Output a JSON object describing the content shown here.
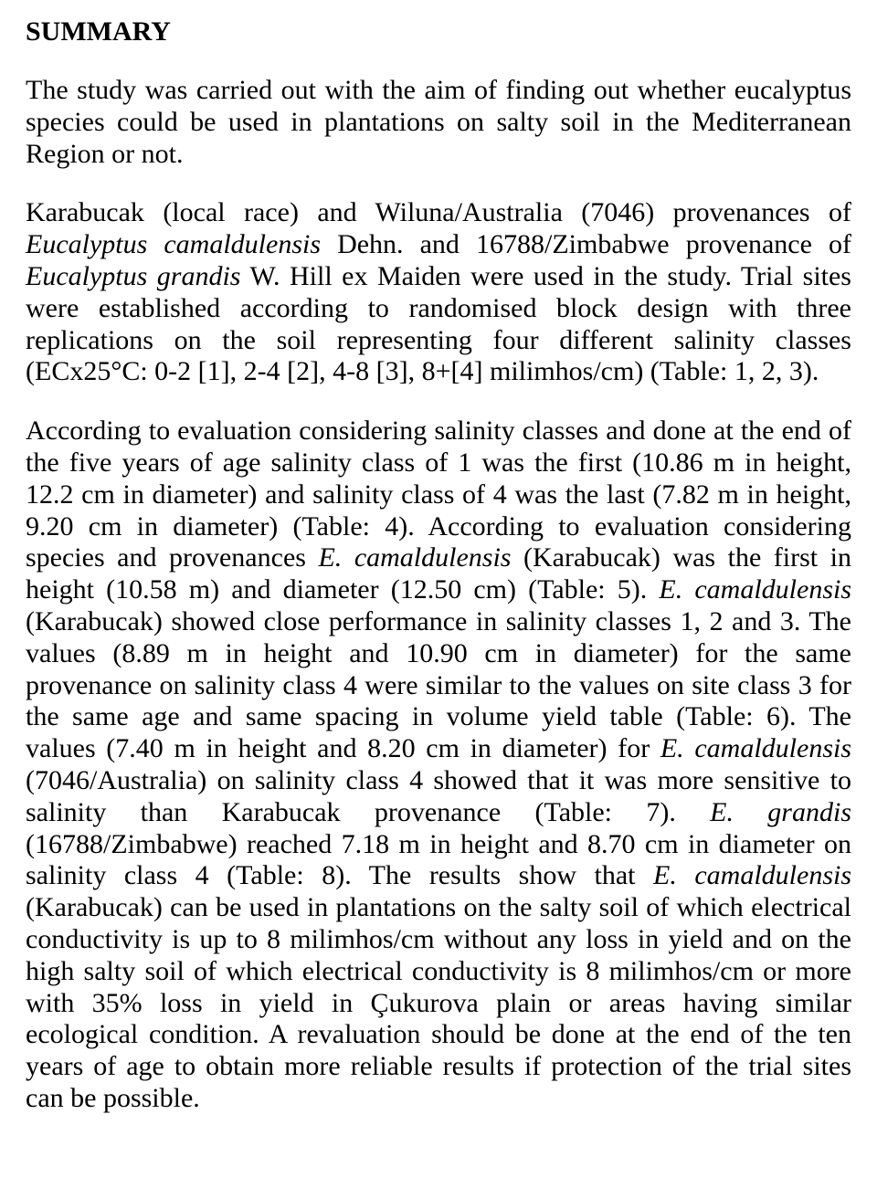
{
  "heading": "SUMMARY",
  "para1_part1": "The study was carried out with the aim of finding out whether eucalyptus species could be used  in plantations on salty soil in the Mediterranean Region or not.",
  "para2_part1": "Karabucak (local race) and Wiluna/Australia (7046) provenances of ",
  "para2_italic1": "Eucalyptus camaldulensis",
  "para2_part2": " Dehn. and 16788/Zimbabwe provenance of ",
  "para2_italic2": "Eucalyptus grandis",
  "para2_part3": " W. Hill ex Maiden were used in the study. Trial sites were established according to randomised block design with three replications on the soil representing four different salinity classes (ECx25°C: 0-2 [1], 2-4 [2], 4-8 [3], 8+[4] milimhos/cm) (Table: 1, 2, 3).",
  "para3_part1": "According to evaluation considering salinity classes and done at the end of the five years of age salinity class of 1 was the first (10.86 m in height, 12.2 cm in diameter) and salinity class of 4 was the last (7.82 m in height, 9.20 cm in diameter) (Table: 4). According to evaluation considering species and provenances ",
  "para3_italic1": "E. camaldulensis",
  "para3_part2": " (Karabucak) was the first in height (10.58 m) and diameter (12.50 cm) (Table: 5). ",
  "para3_italic2": "E. camaldulensis",
  "para3_part3": " (Karabucak) showed close performance in salinity classes 1, 2 and 3. The values (8.89 m in height and 10.90 cm in diameter) for the same provenance on salinity class 4 were similar to the values  on site class 3 for the same age and same spacing in volume yield table (Table: 6). The values (7.40 m in height and 8.20 cm in diameter) for ",
  "para3_italic3": "E. camaldulensis",
  "para3_part4": " (7046/Australia) on salinity class 4 showed that it was more sensitive to salinity than Karabucak provenance (Table: 7). ",
  "para3_italic4": "E. grandis",
  "para3_part5": " (16788/Zimbabwe) reached 7.18 m in height and 8.70 cm in diameter on salinity class 4 (Table: 8). The results show that ",
  "para3_italic5": "E. camaldulensis",
  "para3_part6": " (Karabucak) can be used in plantations on the salty soil of which electrical conductivity is up to 8 milimhos/cm without any loss in yield and on the high salty soil of which electrical conductivity is 8 milimhos/cm or more with 35% loss in yield in Çukurova plain or areas having similar ecological condition. A revaluation should be done at the end of the ten years of age to obtain more reliable results if protection of the trial sites can be possible."
}
